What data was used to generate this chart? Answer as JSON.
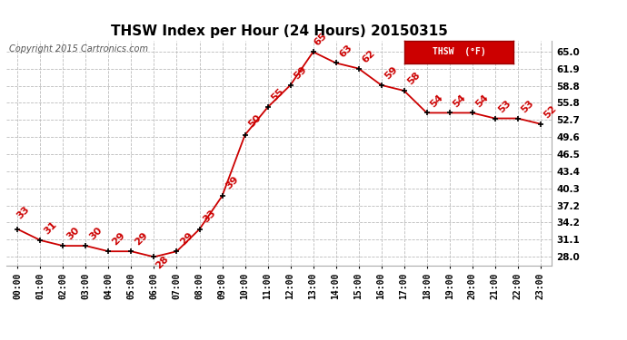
{
  "title": "THSW Index per Hour (24 Hours) 20150315",
  "copyright": "Copyright 2015 Cartronics.com",
  "legend_label": "THSW  (°F)",
  "hours": [
    "00:00",
    "01:00",
    "02:00",
    "03:00",
    "04:00",
    "05:00",
    "06:00",
    "07:00",
    "08:00",
    "09:00",
    "10:00",
    "11:00",
    "12:00",
    "13:00",
    "14:00",
    "15:00",
    "16:00",
    "17:00",
    "18:00",
    "19:00",
    "20:00",
    "21:00",
    "22:00",
    "23:00"
  ],
  "values": [
    33,
    31,
    30,
    30,
    29,
    29,
    28,
    29,
    33,
    39,
    50,
    55,
    59,
    65,
    63,
    62,
    59,
    58,
    54,
    54,
    54,
    53,
    53,
    52
  ],
  "line_color": "#cc0000",
  "marker_color": "#000000",
  "label_color": "#cc0000",
  "background_color": "#ffffff",
  "grid_color": "#bbbbbb",
  "ylim": [
    26.5,
    67.0
  ],
  "yticks": [
    28.0,
    31.1,
    34.2,
    37.2,
    40.3,
    43.4,
    46.5,
    49.6,
    52.7,
    55.8,
    58.8,
    61.9,
    65.0
  ],
  "ytick_labels": [
    "28.0",
    "31.1",
    "34.2",
    "37.2",
    "40.3",
    "43.4",
    "46.5",
    "49.6",
    "52.7",
    "55.8",
    "58.8",
    "61.9",
    "65.0"
  ],
  "title_fontsize": 11,
  "tick_fontsize": 7,
  "label_fontsize": 8,
  "copyright_fontsize": 7
}
